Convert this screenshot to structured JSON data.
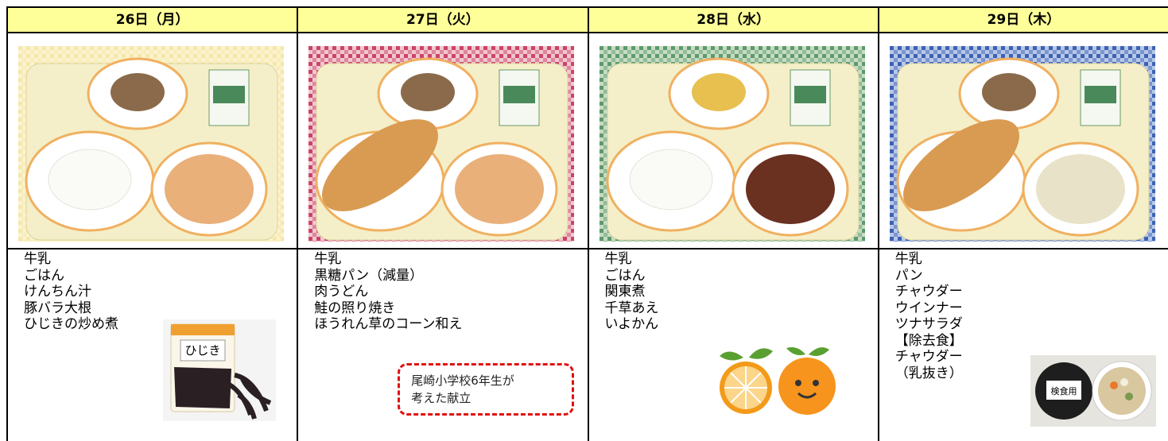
{
  "days": [
    {
      "header": "26日（月）",
      "menu": [
        "牛乳",
        "ごはん",
        "けんちん汁",
        "豚バラ大根",
        "ひじきの炒め煮"
      ]
    },
    {
      "header": "27日（火）",
      "menu": [
        "牛乳",
        "黒糖パン（減量）",
        "肉うどん",
        "鮭の照り焼き",
        "ほうれん草のコーン和え"
      ],
      "note": [
        "尾崎小学校6年生が",
        "考えた献立"
      ]
    },
    {
      "header": "28日（水）",
      "menu": [
        "牛乳",
        "ごはん",
        "関東煮",
        "千草あえ",
        "いよかん"
      ]
    },
    {
      "header": "29日（木）",
      "menu": [
        "牛乳",
        "パン",
        "チャウダー",
        "ウインナー",
        "ツナサラダ",
        "【除去食】",
        "チャウダー",
        "（乳抜き）"
      ]
    }
  ],
  "illustration_labels": {
    "hijiki": "ひじき",
    "inspection": "検食用"
  }
}
